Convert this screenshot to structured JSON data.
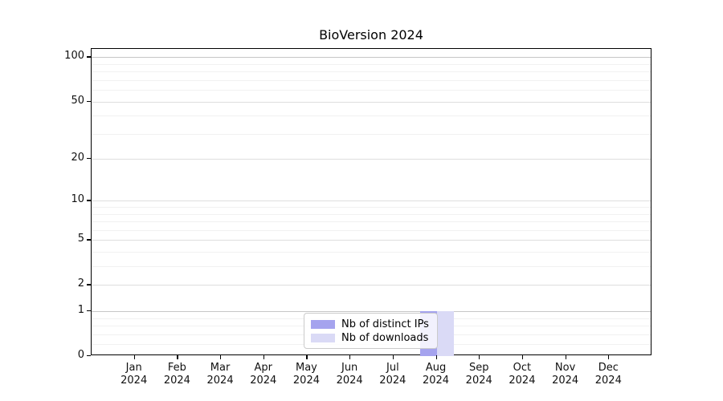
{
  "chart_data": {
    "type": "bar",
    "title": "BioVersion 2024",
    "categories": [
      "Jan 2024",
      "Feb 2024",
      "Mar 2024",
      "Apr 2024",
      "May 2024",
      "Jun 2024",
      "Jul 2024",
      "Aug 2024",
      "Sep 2024",
      "Oct 2024",
      "Nov 2024",
      "Dec 2024"
    ],
    "series": [
      {
        "name": "Nb of distinct IPs",
        "color": "#a5a3ee",
        "values": [
          0,
          0,
          0,
          0,
          0,
          0,
          0,
          1,
          0,
          0,
          0,
          0
        ]
      },
      {
        "name": "Nb of downloads",
        "color": "#dadaf6",
        "values": [
          0,
          0,
          0,
          0,
          0,
          0,
          0,
          1,
          0,
          0,
          0,
          0
        ]
      }
    ],
    "xlabel": "",
    "ylabel": "",
    "yscale": "log1p",
    "ylim": [
      0,
      114
    ],
    "y_major_ticks": [
      0,
      1,
      2,
      5,
      10,
      20,
      50,
      100
    ],
    "y_minor_ticks": [
      0.2,
      0.4,
      0.6,
      0.8,
      3,
      4,
      6,
      7,
      8,
      9,
      30,
      40,
      60,
      70,
      80,
      90
    ],
    "grid": "both",
    "legend_position": "lower center"
  },
  "legend": {
    "items": [
      {
        "label": "Nb of distinct IPs",
        "color": "#a5a3ee"
      },
      {
        "label": "Nb of downloads",
        "color": "#dadaf6"
      }
    ]
  }
}
